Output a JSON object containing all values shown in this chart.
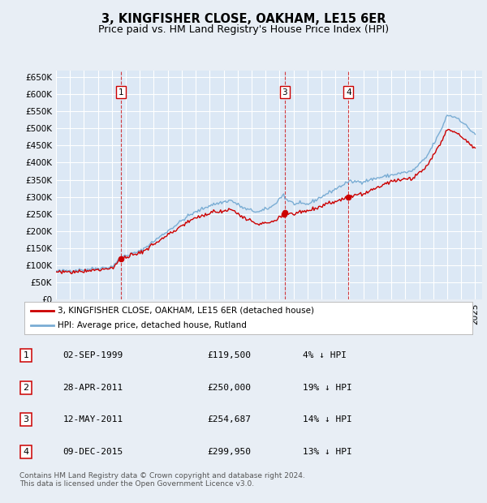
{
  "title": "3, KINGFISHER CLOSE, OAKHAM, LE15 6ER",
  "subtitle": "Price paid vs. HM Land Registry's House Price Index (HPI)",
  "ylim": [
    0,
    670000
  ],
  "yticks": [
    0,
    50000,
    100000,
    150000,
    200000,
    250000,
    300000,
    350000,
    400000,
    450000,
    500000,
    550000,
    600000,
    650000
  ],
  "xlim_start": 1995.0,
  "xlim_end": 2025.5,
  "background_color": "#e8eef5",
  "plot_bg_color": "#dce8f5",
  "grid_color": "#ffffff",
  "sale_color": "#cc0000",
  "hpi_color": "#7aadd4",
  "legend_sale_label": "3, KINGFISHER CLOSE, OAKHAM, LE15 6ER (detached house)",
  "legend_hpi_label": "HPI: Average price, detached house, Rutland",
  "sales": [
    {
      "label": "1",
      "date_float": 1999.67,
      "price": 119500
    },
    {
      "label": "2",
      "date_float": 2011.32,
      "price": 250000
    },
    {
      "label": "3",
      "date_float": 2011.37,
      "price": 254687
    },
    {
      "label": "4",
      "date_float": 2015.93,
      "price": 299950
    }
  ],
  "shown_vlines": [
    {
      "label": "1",
      "date_float": 1999.67
    },
    {
      "label": "3",
      "date_float": 2011.37
    },
    {
      "label": "4",
      "date_float": 2015.93
    }
  ],
  "table_rows": [
    {
      "num": "1",
      "date": "02-SEP-1999",
      "price": "£119,500",
      "pct": "4% ↓ HPI"
    },
    {
      "num": "2",
      "date": "28-APR-2011",
      "price": "£250,000",
      "pct": "19% ↓ HPI"
    },
    {
      "num": "3",
      "date": "12-MAY-2011",
      "price": "£254,687",
      "pct": "14% ↓ HPI"
    },
    {
      "num": "4",
      "date": "09-DEC-2015",
      "price": "£299,950",
      "pct": "13% ↓ HPI"
    }
  ],
  "footer": "Contains HM Land Registry data © Crown copyright and database right 2024.\nThis data is licensed under the Open Government Licence v3.0.",
  "title_fontsize": 10.5,
  "subtitle_fontsize": 9,
  "tick_fontsize": 7.5
}
